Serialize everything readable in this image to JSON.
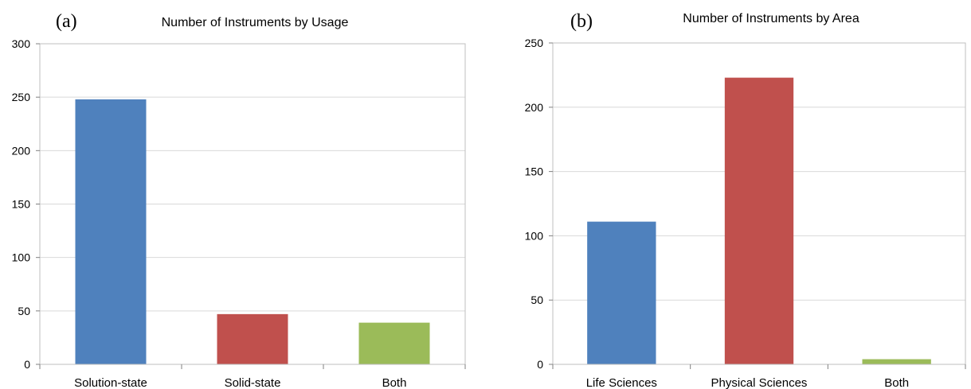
{
  "chart_data": [
    {
      "type": "bar",
      "panel_label": "(a)",
      "title": "Number of Instruments by Usage",
      "xlabel": "",
      "ylabel": "",
      "categories": [
        "Solution-state",
        "Solid-state",
        "Both"
      ],
      "values": [
        248,
        47,
        39
      ],
      "colors": [
        "#4f81bd",
        "#c0504d",
        "#9bbb59"
      ],
      "ylim": [
        0,
        300
      ],
      "yticks": [
        0,
        50,
        100,
        150,
        200,
        250,
        300
      ],
      "grid": true,
      "legend": "none"
    },
    {
      "type": "bar",
      "panel_label": "(b)",
      "title": "Number of Instruments by Area",
      "xlabel": "",
      "ylabel": "",
      "categories": [
        "Life Sciences",
        "Physical Sciences",
        "Both"
      ],
      "values": [
        111,
        223,
        4
      ],
      "colors": [
        "#4f81bd",
        "#c0504d",
        "#9bbb59"
      ],
      "ylim": [
        0,
        250
      ],
      "yticks": [
        0,
        50,
        100,
        150,
        200,
        250
      ],
      "grid": true,
      "legend": "none"
    }
  ]
}
